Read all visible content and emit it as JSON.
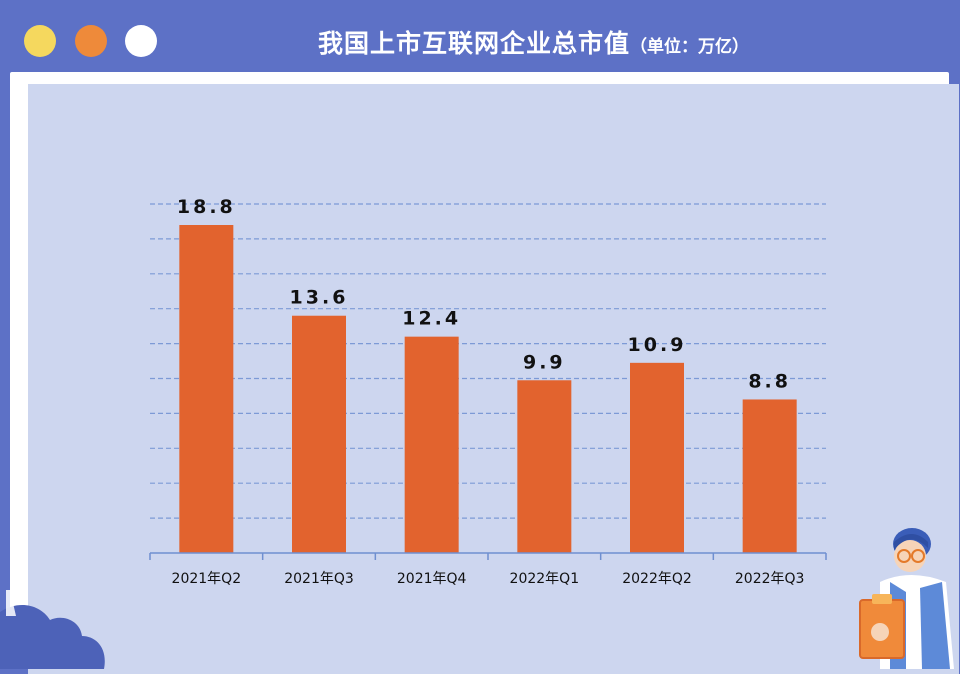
{
  "title": {
    "main": "我国上市互联网企业总市值",
    "unit": "（单位：万亿）"
  },
  "colors": {
    "frame": "#5d71c6",
    "plot_background": "#cdd6ef",
    "bar": "#e2632e",
    "gridline": "#7d9ad6",
    "axis": "#6f8fd0",
    "dot_yellow": "#f5d85e",
    "dot_orange": "#ee8a3a",
    "dot_white": "#ffffff"
  },
  "icons": [
    "window-dot-yellow",
    "window-dot-orange",
    "window-dot-white",
    "cloud-decoration",
    "worker-with-clipboard-illustration"
  ],
  "chart_data": {
    "type": "bar",
    "title": "我国上市互联网企业总市值（单位：万亿）",
    "categories": [
      "2021年Q2",
      "2021年Q3",
      "2021年Q4",
      "2022年Q1",
      "2022年Q2",
      "2022年Q3"
    ],
    "values": [
      18.8,
      13.6,
      12.4,
      9.9,
      10.9,
      8.8
    ],
    "data_labels": [
      "18.8",
      "13.6",
      "12.4",
      "9.9",
      "10.9",
      "8.8"
    ],
    "xlabel": "",
    "ylabel": "",
    "ylim": [
      0,
      20
    ],
    "grid": true,
    "legend": "none"
  }
}
